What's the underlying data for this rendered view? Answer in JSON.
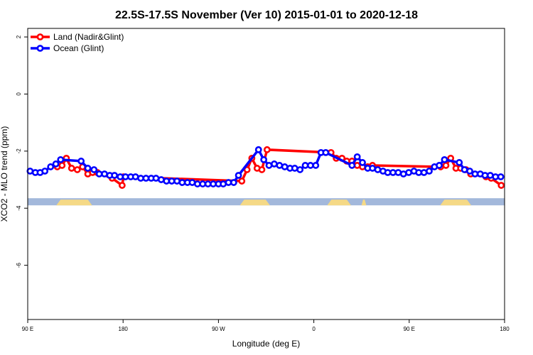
{
  "chart_data": {
    "type": "line",
    "title": "22.5S-17.5S November (Ver 10)   2015-01-01 to 2020-12-18",
    "xlabel": "Longitude (deg E)",
    "ylabel": "XCO2 - MLO trend (ppm)",
    "xlim": [
      0,
      100
    ],
    "ylim": [
      -7.9,
      2.3
    ],
    "x_ticks": [
      {
        "value": 0,
        "label": "90 E"
      },
      {
        "value": 20,
        "label": "180"
      },
      {
        "value": 40,
        "label": "90 W"
      },
      {
        "value": 60,
        "label": "0"
      },
      {
        "value": 80,
        "label": "90 E"
      },
      {
        "value": 100,
        "label": "180"
      }
    ],
    "y_ticks": [
      {
        "value": 2,
        "label": "2"
      },
      {
        "value": 0,
        "label": "0"
      },
      {
        "value": -2,
        "label": "-2"
      },
      {
        "value": -4,
        "label": "-4"
      },
      {
        "value": -6,
        "label": "-6"
      }
    ],
    "grid": false,
    "legend_position": "top-left",
    "series": [
      {
        "name": "Land (Nadir&Glint)",
        "color": "#ff0000",
        "x": [
          6.2,
          7.2,
          8.1,
          9.2,
          10.4,
          11.5,
          12.6,
          13.6,
          14.6,
          17.7,
          19.8,
          20.1,
          44.9,
          46.0,
          47.0,
          48.1,
          49.1,
          50.2,
          63.6,
          64.7,
          65.9,
          66.9,
          68.0,
          69.1,
          70.2,
          71.3,
          72.3,
          86.6,
          87.7,
          88.7,
          89.8,
          90.8,
          91.9,
          92.9,
          96.1,
          97.2,
          99.3
        ],
        "y": [
          -2.55,
          -2.5,
          -2.25,
          -2.6,
          -2.65,
          -2.55,
          -2.8,
          -2.75,
          -2.75,
          -2.95,
          -3.2,
          -2.9,
          -3.05,
          -2.65,
          -2.25,
          -2.6,
          -2.65,
          -1.95,
          -2.05,
          -2.25,
          -2.25,
          -2.35,
          -2.35,
          -2.5,
          -2.55,
          -2.55,
          -2.5,
          -2.55,
          -2.5,
          -2.25,
          -2.6,
          -2.6,
          -2.65,
          -2.8,
          -2.9,
          -2.95,
          -3.2
        ]
      },
      {
        "name": "Ocean (Glint)",
        "color": "#0000ff",
        "x": [
          0.5,
          1.6,
          2.6,
          3.6,
          4.8,
          5.9,
          6.9,
          11.2,
          12.6,
          13.9,
          15.0,
          16.1,
          17.2,
          18.2,
          19.4,
          20.5,
          21.6,
          22.6,
          23.7,
          24.8,
          25.9,
          26.9,
          28.0,
          29.1,
          30.2,
          31.3,
          32.4,
          33.5,
          34.5,
          35.6,
          36.7,
          37.8,
          38.9,
          40.0,
          41.0,
          42.1,
          43.2,
          44.2,
          48.4,
          49.5,
          50.6,
          51.7,
          52.8,
          53.9,
          55.0,
          56.0,
          57.1,
          58.2,
          59.3,
          60.4,
          61.5,
          62.5,
          68.0,
          69.1,
          70.2,
          71.3,
          72.3,
          73.4,
          74.5,
          75.5,
          76.6,
          77.7,
          78.8,
          79.9,
          81.0,
          82.0,
          83.1,
          84.2,
          85.3,
          86.3,
          87.4,
          90.5,
          91.6,
          92.7,
          93.8,
          94.9,
          95.9,
          97.0,
          98.1,
          99.2
        ],
        "y": [
          -2.7,
          -2.75,
          -2.75,
          -2.7,
          -2.55,
          -2.45,
          -2.3,
          -2.35,
          -2.6,
          -2.65,
          -2.8,
          -2.8,
          -2.85,
          -2.85,
          -2.9,
          -2.9,
          -2.9,
          -2.9,
          -2.95,
          -2.95,
          -2.95,
          -2.95,
          -3.0,
          -3.05,
          -3.05,
          -3.05,
          -3.1,
          -3.1,
          -3.1,
          -3.15,
          -3.15,
          -3.15,
          -3.15,
          -3.15,
          -3.15,
          -3.1,
          -3.1,
          -2.85,
          -1.95,
          -2.3,
          -2.5,
          -2.45,
          -2.5,
          -2.55,
          -2.6,
          -2.6,
          -2.65,
          -2.5,
          -2.5,
          -2.5,
          -2.05,
          -2.05,
          -2.5,
          -2.2,
          -2.4,
          -2.6,
          -2.6,
          -2.65,
          -2.7,
          -2.75,
          -2.75,
          -2.75,
          -2.8,
          -2.75,
          -2.7,
          -2.75,
          -2.75,
          -2.7,
          -2.55,
          -2.5,
          -2.3,
          -2.4,
          -2.65,
          -2.7,
          -2.8,
          -2.8,
          -2.85,
          -2.85,
          -2.9,
          -2.9
        ]
      }
    ],
    "surface_band": {
      "y_range": [
        -3.9,
        -3.65
      ],
      "ocean_color": "#a3b8db",
      "land_color": "#f5d986",
      "land_x_ranges": [
        [
          6.0,
          13.5
        ],
        [
          44.5,
          50.8
        ],
        [
          62.8,
          67.8
        ],
        [
          70.0,
          71.0
        ],
        [
          86.5,
          93.0
        ]
      ]
    }
  }
}
